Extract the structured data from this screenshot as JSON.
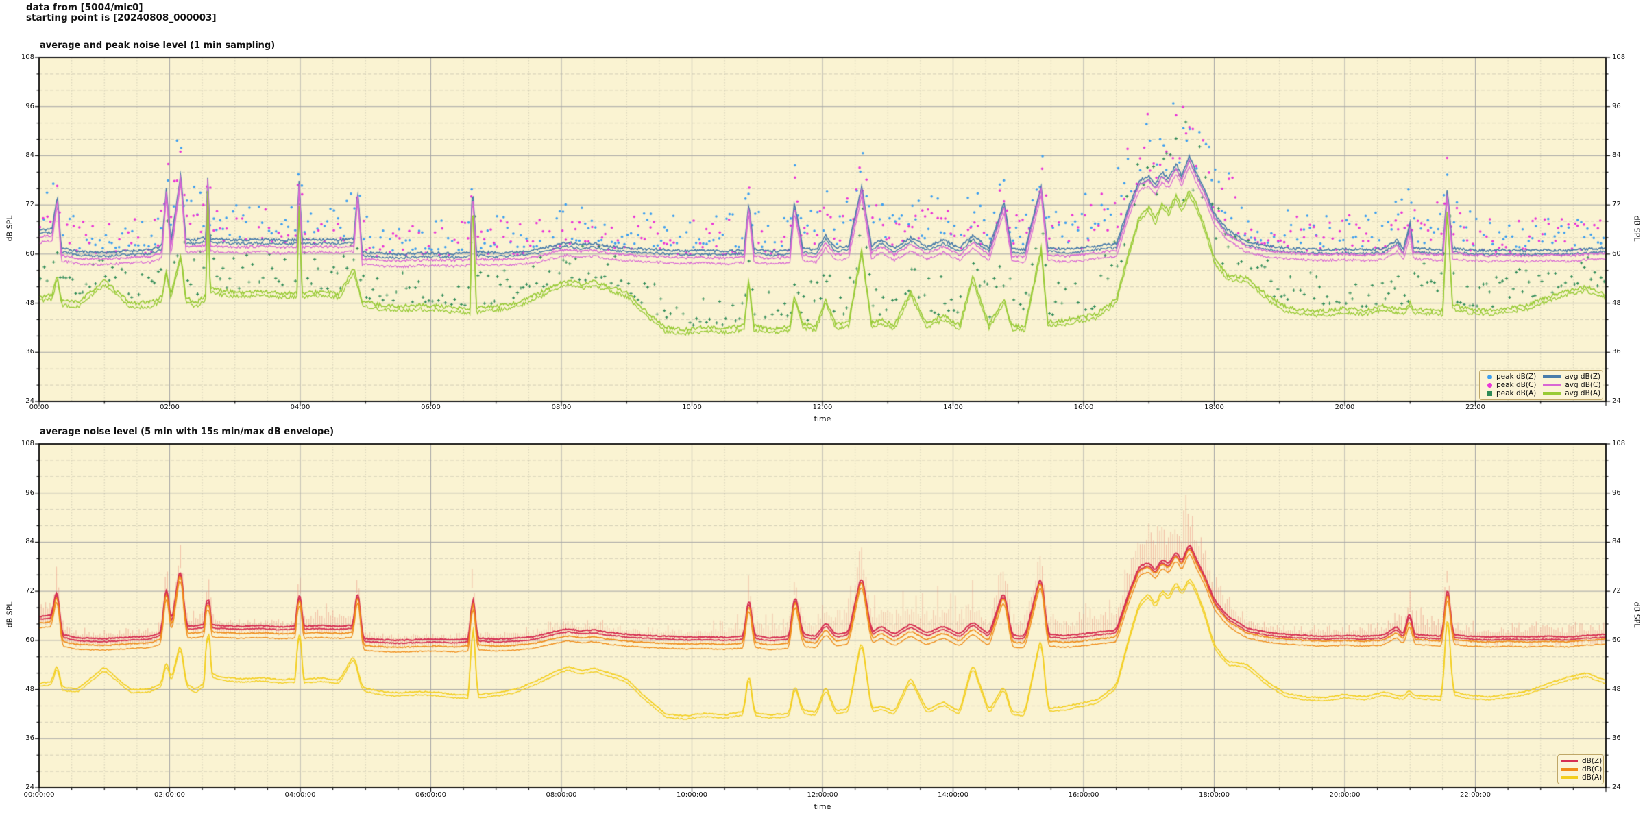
{
  "header": {
    "line1": "data from [5004/mic0]",
    "line2": "starting point is [20240808_000003]"
  },
  "chart1": {
    "title": "average and peak noise level (1 min sampling)",
    "xlabel": "time",
    "ylabel_left": "dB SPL",
    "ylabel_right": "dB SPL",
    "x_tick_labels": [
      "00:00",
      "02:00",
      "04:00",
      "06:00",
      "08:00",
      "10:00",
      "12:00",
      "14:00",
      "16:00",
      "18:00",
      "20:00",
      "22:00"
    ],
    "y_tick_labels": [
      "24",
      "36",
      "48",
      "60",
      "72",
      "84",
      "96",
      "108"
    ],
    "legend": [
      {
        "label": "peak dB(Z)",
        "type": "dot",
        "color": "#3fa0f0"
      },
      {
        "label": "avg dB(Z)",
        "type": "line",
        "color": "#4a7dab"
      },
      {
        "label": "peak dB(C)",
        "type": "dot",
        "color": "#ea36d8"
      },
      {
        "label": "avg dB(C)",
        "type": "line",
        "color": "#d967d4"
      },
      {
        "label": "peak dB(A)",
        "type": "plus",
        "color": "#2e8b57"
      },
      {
        "label": "avg dB(A)",
        "type": "line",
        "color": "#98cb36"
      }
    ]
  },
  "chart2": {
    "title": "average noise level (5 min with 15s min/max dB envelope)",
    "xlabel": "time",
    "ylabel_left": "dB SPL",
    "ylabel_right": "dB SPL",
    "x_tick_labels": [
      "00:00:00",
      "02:00:00",
      "04:00:00",
      "06:00:00",
      "08:00:00",
      "10:00:00",
      "12:00:00",
      "14:00:00",
      "16:00:00",
      "18:00:00",
      "20:00:00",
      "22:00:00"
    ],
    "y_tick_labels": [
      "24",
      "36",
      "48",
      "60",
      "72",
      "84",
      "96",
      "108"
    ],
    "legend": [
      {
        "label": "dB(Z)",
        "type": "line",
        "color": "#d62e52"
      },
      {
        "label": "dB(C)",
        "type": "line",
        "color": "#f08c17"
      },
      {
        "label": "dB(A)",
        "type": "line",
        "color": "#f3ce1d"
      }
    ]
  },
  "chart_data": {
    "type": [
      "scatter+line",
      "line+envelope"
    ],
    "x_unit": "hours",
    "xlim": [
      0,
      24
    ],
    "ylim": [
      24,
      108
    ],
    "grid": {
      "x_major_h": 2,
      "x_minor_h": 0.5,
      "y_major_db": 12,
      "y_minor_db": 4
    },
    "plot_bg": "#faf3d2",
    "grid_major_color": "#a5a5a5",
    "grid_minor_color": "#c9c5b0",
    "envelope_color": "rgba(233,139,123,0.45)",
    "series_keypoints": {
      "Z": {
        "name": "dB(Z)",
        "t": [
          0,
          0.2,
          0.28,
          0.34,
          0.6,
          1.0,
          1.4,
          1.7,
          1.88,
          1.95,
          2.02,
          2.17,
          2.25,
          2.4,
          2.56,
          2.58,
          2.62,
          2.8,
          3.1,
          3.4,
          3.7,
          3.95,
          3.98,
          4.03,
          4.3,
          4.6,
          4.82,
          4.88,
          4.95,
          5.2,
          5.5,
          5.8,
          6.1,
          6.35,
          6.6,
          6.64,
          6.7,
          7.0,
          7.3,
          7.6,
          7.9,
          8.1,
          8.3,
          8.5,
          8.7,
          9.0,
          9.3,
          9.6,
          9.9,
          10.2,
          10.5,
          10.8,
          10.87,
          10.95,
          11.2,
          11.5,
          11.57,
          11.7,
          11.9,
          12.05,
          12.2,
          12.4,
          12.6,
          12.75,
          12.9,
          13.1,
          13.35,
          13.6,
          13.85,
          14.1,
          14.3,
          14.55,
          14.78,
          14.9,
          15.1,
          15.35,
          15.45,
          15.7,
          15.95,
          16.2,
          16.5,
          16.7,
          16.85,
          17.0,
          17.1,
          17.2,
          17.3,
          17.42,
          17.5,
          17.62,
          17.72,
          17.85,
          18.0,
          18.2,
          18.5,
          18.8,
          19.1,
          19.4,
          19.7,
          20.0,
          20.3,
          20.6,
          20.8,
          20.9,
          21.0,
          21.05,
          21.3,
          21.5,
          21.57,
          21.65,
          21.9,
          22.2,
          22.5,
          22.8,
          23.1,
          23.4,
          23.7,
          24.0
        ],
        "v": [
          65.8,
          66.2,
          74.5,
          61.5,
          60.6,
          60.4,
          60.8,
          61.0,
          62.0,
          76.0,
          63.0,
          79.5,
          63.5,
          63.5,
          64.0,
          80.0,
          63.8,
          63.6,
          63.4,
          63.6,
          63.3,
          63.5,
          79.0,
          63.4,
          63.6,
          63.4,
          63.7,
          75.5,
          60.5,
          60.2,
          60.0,
          60.2,
          60.3,
          60.1,
          60.4,
          76.5,
          60.6,
          60.3,
          60.5,
          61.0,
          62.2,
          62.8,
          62.3,
          62.6,
          62.0,
          61.5,
          61.2,
          61.0,
          60.8,
          60.9,
          60.7,
          61.0,
          72.5,
          61.2,
          60.6,
          61.0,
          72.5,
          61.5,
          61.0,
          64.5,
          61.5,
          62.0,
          76.5,
          62.0,
          63.5,
          61.5,
          64.0,
          61.8,
          63.5,
          61.5,
          64.5,
          61.5,
          72.5,
          61.3,
          61.0,
          76.5,
          61.5,
          61.2,
          61.5,
          62.0,
          62.5,
          72.0,
          78.0,
          79.0,
          77.0,
          80.0,
          78.5,
          82.0,
          79.0,
          84.0,
          80.0,
          76.0,
          70.0,
          66.0,
          63.0,
          62.0,
          61.5,
          61.2,
          61.0,
          61.2,
          61.0,
          61.3,
          63.5,
          61.2,
          68.0,
          61.5,
          61.2,
          61.0,
          76.0,
          61.5,
          61.0,
          60.8,
          61.0,
          60.8,
          61.0,
          60.8,
          61.2,
          61.5
        ]
      },
      "C": {
        "name": "dB(C)",
        "t": [
          0,
          0.2,
          0.28,
          0.34,
          0.6,
          1.0,
          1.4,
          1.7,
          1.88,
          1.95,
          2.02,
          2.17,
          2.25,
          2.4,
          2.56,
          2.58,
          2.62,
          2.8,
          3.1,
          3.4,
          3.7,
          3.95,
          3.98,
          4.03,
          4.3,
          4.6,
          4.82,
          4.88,
          4.95,
          5.2,
          5.5,
          5.8,
          6.1,
          6.35,
          6.6,
          6.64,
          6.7,
          7.0,
          7.3,
          7.6,
          7.9,
          8.1,
          8.3,
          8.5,
          8.7,
          9.0,
          9.3,
          9.6,
          9.9,
          10.2,
          10.5,
          10.8,
          10.87,
          10.95,
          11.2,
          11.5,
          11.57,
          11.7,
          11.9,
          12.05,
          12.2,
          12.4,
          12.6,
          12.75,
          12.9,
          13.1,
          13.35,
          13.6,
          13.85,
          14.1,
          14.3,
          14.55,
          14.78,
          14.9,
          15.1,
          15.35,
          15.45,
          15.7,
          15.95,
          16.2,
          16.5,
          16.7,
          16.85,
          17.0,
          17.1,
          17.2,
          17.3,
          17.42,
          17.5,
          17.62,
          17.72,
          17.85,
          18.0,
          18.2,
          18.5,
          18.8,
          19.1,
          19.4,
          19.7,
          20.0,
          20.3,
          20.6,
          20.8,
          20.9,
          21.0,
          21.05,
          21.3,
          21.5,
          21.57,
          21.65,
          21.9,
          22.2,
          22.5,
          22.8,
          23.1,
          23.4,
          23.7,
          24.0
        ],
        "v": [
          64.2,
          64.6,
          73.5,
          59.8,
          59.0,
          58.8,
          59.2,
          59.4,
          60.4,
          75.2,
          61.2,
          78.8,
          61.8,
          61.8,
          62.3,
          79.5,
          62.1,
          61.9,
          61.7,
          61.9,
          61.6,
          61.8,
          78.2,
          61.7,
          61.9,
          61.7,
          62.0,
          74.8,
          58.8,
          58.5,
          58.3,
          58.5,
          58.6,
          58.4,
          58.7,
          75.8,
          58.9,
          58.6,
          58.8,
          59.3,
          60.5,
          61.1,
          60.6,
          60.9,
          60.3,
          59.8,
          59.5,
          59.3,
          59.1,
          59.2,
          59.0,
          59.3,
          71.5,
          59.5,
          58.9,
          59.3,
          71.5,
          59.8,
          59.3,
          62.8,
          59.8,
          60.3,
          75.7,
          60.3,
          61.8,
          59.8,
          62.3,
          60.1,
          61.8,
          59.8,
          62.8,
          59.8,
          71.5,
          59.6,
          59.3,
          75.7,
          59.8,
          59.5,
          59.8,
          60.3,
          60.8,
          70.8,
          77.0,
          78.0,
          76.0,
          79.0,
          77.5,
          81.0,
          78.0,
          83.0,
          79.0,
          75.0,
          68.8,
          64.8,
          61.8,
          60.8,
          60.3,
          60.0,
          59.8,
          60.0,
          59.8,
          60.1,
          62.0,
          60.0,
          66.0,
          60.3,
          60.0,
          59.8,
          75.0,
          60.3,
          59.8,
          59.6,
          59.8,
          59.6,
          59.8,
          59.6,
          60.0,
          60.3
        ]
      },
      "A": {
        "name": "dB(A)",
        "t": [
          0,
          0.2,
          0.28,
          0.34,
          0.6,
          1.0,
          1.4,
          1.7,
          1.88,
          1.95,
          2.02,
          2.17,
          2.25,
          2.4,
          2.56,
          2.58,
          2.62,
          2.8,
          3.1,
          3.4,
          3.7,
          3.95,
          3.98,
          4.03,
          4.3,
          4.6,
          4.82,
          4.88,
          4.95,
          5.2,
          5.5,
          5.8,
          6.1,
          6.35,
          6.6,
          6.64,
          6.7,
          7.0,
          7.3,
          7.6,
          7.9,
          8.1,
          8.3,
          8.5,
          8.7,
          9.0,
          9.3,
          9.6,
          9.9,
          10.2,
          10.5,
          10.8,
          10.87,
          10.95,
          11.2,
          11.5,
          11.57,
          11.7,
          11.9,
          12.05,
          12.2,
          12.4,
          12.6,
          12.75,
          12.9,
          13.1,
          13.35,
          13.6,
          13.85,
          14.1,
          14.3,
          14.55,
          14.78,
          14.9,
          15.1,
          15.35,
          15.45,
          15.7,
          15.95,
          16.2,
          16.5,
          16.7,
          16.85,
          17.0,
          17.1,
          17.2,
          17.3,
          17.42,
          17.5,
          17.62,
          17.72,
          17.85,
          18.0,
          18.2,
          18.5,
          18.8,
          19.1,
          19.4,
          19.7,
          20.0,
          20.3,
          20.6,
          20.8,
          20.9,
          21.0,
          21.05,
          21.3,
          21.5,
          21.57,
          21.65,
          21.9,
          22.2,
          22.5,
          22.8,
          23.1,
          23.4,
          23.7,
          24.0
        ],
        "v": [
          49.5,
          50.0,
          55.0,
          48.6,
          48.2,
          53.5,
          48.0,
          48.2,
          49.5,
          56.0,
          50.0,
          60.0,
          49.5,
          48.0,
          50.0,
          78.0,
          52.0,
          51.0,
          50.6,
          50.9,
          50.4,
          50.6,
          73.0,
          50.4,
          50.8,
          50.3,
          56.5,
          53.0,
          48.5,
          47.6,
          47.2,
          47.5,
          47.3,
          46.8,
          46.6,
          74.0,
          46.8,
          47.2,
          48.0,
          50.0,
          52.3,
          53.6,
          52.6,
          53.2,
          52.2,
          50.6,
          46.0,
          42.0,
          41.6,
          42.2,
          41.8,
          42.6,
          54.0,
          42.4,
          41.8,
          42.2,
          50.0,
          43.0,
          42.4,
          49.0,
          42.8,
          43.4,
          61.0,
          43.2,
          44.0,
          42.6,
          51.0,
          43.0,
          45.0,
          42.6,
          54.5,
          42.8,
          49.0,
          42.6,
          42.4,
          61.5,
          43.4,
          43.8,
          44.6,
          45.4,
          49.0,
          61.0,
          69.0,
          71.5,
          68.5,
          72.5,
          70.5,
          74.5,
          71.5,
          75.5,
          72.5,
          67.0,
          59.0,
          54.8,
          54.2,
          50.0,
          47.0,
          46.2,
          46.0,
          46.8,
          46.2,
          47.4,
          46.6,
          46.4,
          48.0,
          46.6,
          46.4,
          46.2,
          71.5,
          47.5,
          46.6,
          46.2,
          46.8,
          47.6,
          49.4,
          51.0,
          52.0,
          50.2
        ]
      }
    },
    "envelope_up_keypoints": {
      "t": [
        0,
        0.3,
        0.5,
        1.8,
        1.95,
        2.3,
        2.6,
        2.8,
        3.9,
        4.0,
        4.85,
        5.0,
        6.5,
        6.65,
        6.8,
        8.0,
        9.0,
        10.0,
        10.9,
        11.3,
        11.6,
        12.0,
        12.6,
        13.0,
        13.5,
        14.0,
        14.5,
        15.0,
        15.4,
        15.7,
        16.0,
        16.5,
        16.8,
        17.0,
        17.3,
        17.5,
        17.7,
        18.0,
        18.3,
        18.6,
        19.0,
        20.0,
        20.8,
        21.0,
        21.6,
        22.0,
        23.0,
        24.0
      ],
      "v": [
        7,
        6,
        2.5,
        2.5,
        8,
        4,
        9,
        2,
        2,
        6,
        6,
        2.5,
        2,
        8,
        2.5,
        3,
        2.5,
        3,
        7,
        6,
        8,
        10,
        12,
        9,
        10,
        10,
        9,
        10,
        12,
        8,
        9,
        12,
        14,
        15,
        16,
        15,
        14,
        10,
        6,
        4,
        3,
        3,
        5,
        8,
        6,
        3,
        4,
        4
      ]
    },
    "scatter": {
      "step_minutes": 3,
      "offset_min": 0.8,
      "offset_max": 9.5,
      "boost_windows": [
        [
          0.15,
          0.45,
          6
        ],
        [
          1.85,
          2.75,
          8
        ],
        [
          3.9,
          4.1,
          6
        ],
        [
          4.75,
          5.0,
          5
        ],
        [
          6.55,
          6.75,
          6
        ],
        [
          10.75,
          11.05,
          5
        ],
        [
          11.4,
          16.2,
          5
        ],
        [
          12.5,
          12.85,
          8
        ],
        [
          15.25,
          15.55,
          8
        ],
        [
          16.2,
          18.4,
          12
        ],
        [
          20.7,
          21.8,
          6
        ],
        [
          22.9,
          23.4,
          4
        ]
      ],
      "value_cap": 96.8
    }
  }
}
